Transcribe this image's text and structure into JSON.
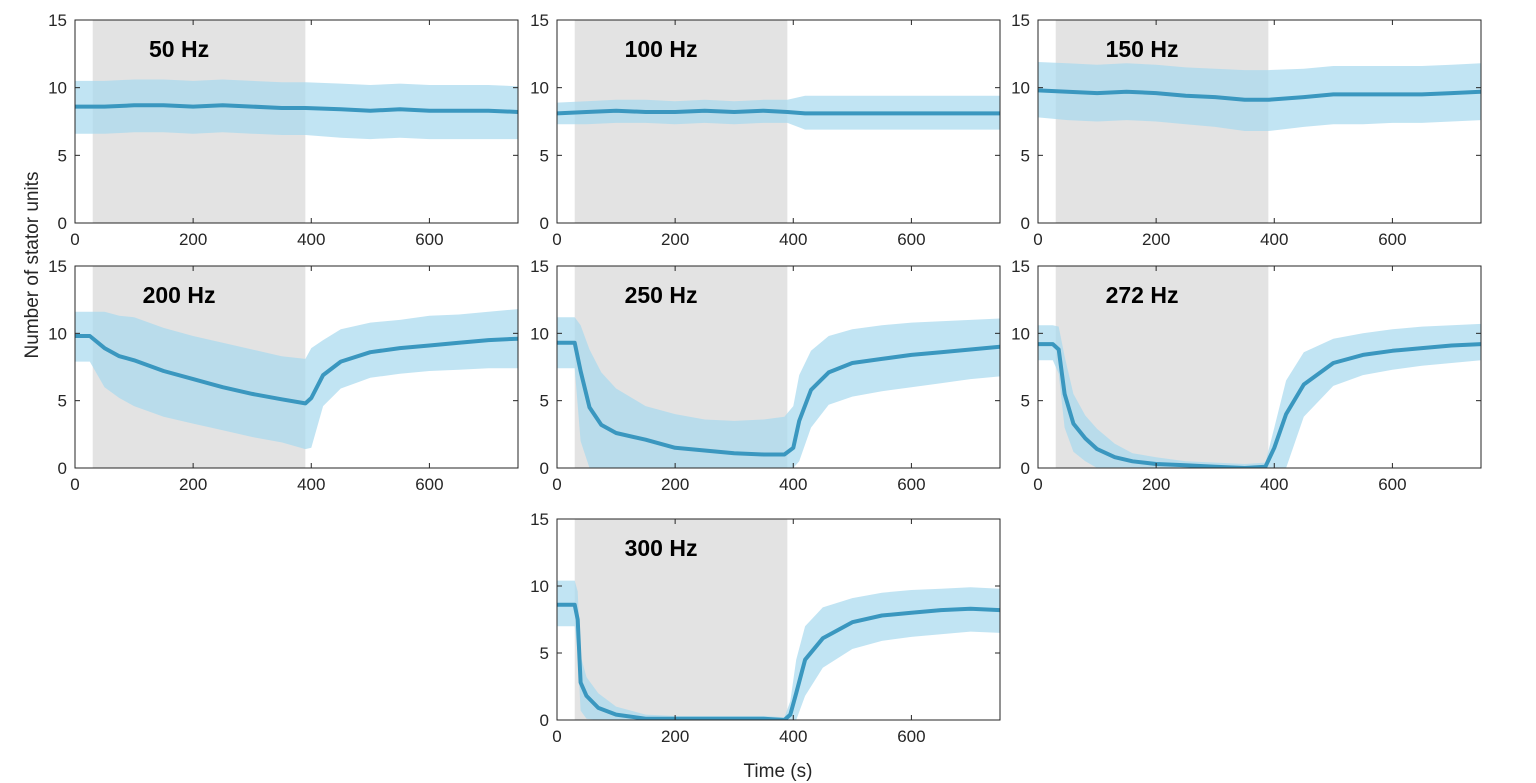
{
  "figure": {
    "ylabel": "Number of stator units",
    "xlabel": "Time (s)"
  },
  "colors": {
    "line": "#3a97bf",
    "band": "#a9daee",
    "stimulus_shade": "#e3e3e3",
    "axis": "#262626"
  },
  "chart_data": [
    {
      "type": "line",
      "title": "50 Hz",
      "xlim": [
        0,
        750
      ],
      "ylim": [
        0,
        15
      ],
      "xticks": [
        0,
        200,
        400,
        600
      ],
      "yticks": [
        0,
        5,
        10,
        15
      ],
      "shaded_interval": [
        30,
        390
      ],
      "series": [
        {
          "x": [
            0,
            50,
            100,
            150,
            200,
            250,
            300,
            350,
            390,
            450,
            500,
            550,
            600,
            650,
            700,
            750
          ],
          "y": [
            8.6,
            8.6,
            8.7,
            8.7,
            8.6,
            8.7,
            8.6,
            8.5,
            8.5,
            8.4,
            8.3,
            8.4,
            8.3,
            8.3,
            8.3,
            8.2
          ],
          "lower": [
            6.6,
            6.6,
            6.7,
            6.7,
            6.6,
            6.7,
            6.6,
            6.5,
            6.5,
            6.3,
            6.2,
            6.3,
            6.2,
            6.2,
            6.2,
            6.2
          ],
          "upper": [
            10.5,
            10.5,
            10.6,
            10.6,
            10.5,
            10.6,
            10.5,
            10.4,
            10.4,
            10.3,
            10.2,
            10.3,
            10.2,
            10.2,
            10.2,
            10.1
          ]
        }
      ]
    },
    {
      "type": "line",
      "title": "100 Hz",
      "xlim": [
        0,
        750
      ],
      "ylim": [
        0,
        15
      ],
      "xticks": [
        0,
        200,
        400,
        600
      ],
      "yticks": [
        0,
        5,
        10,
        15
      ],
      "shaded_interval": [
        30,
        390
      ],
      "series": [
        {
          "x": [
            0,
            50,
            100,
            150,
            200,
            250,
            300,
            350,
            390,
            420,
            500,
            600,
            700,
            750
          ],
          "y": [
            8.1,
            8.2,
            8.3,
            8.2,
            8.2,
            8.3,
            8.2,
            8.3,
            8.2,
            8.1,
            8.1,
            8.1,
            8.1,
            8.1
          ],
          "lower": [
            7.3,
            7.3,
            7.4,
            7.4,
            7.3,
            7.4,
            7.3,
            7.4,
            7.4,
            6.9,
            6.9,
            6.9,
            6.9,
            6.9
          ],
          "upper": [
            8.9,
            9.0,
            9.1,
            9.1,
            9.0,
            9.1,
            9.0,
            9.1,
            9.1,
            9.4,
            9.4,
            9.4,
            9.4,
            9.4
          ]
        }
      ]
    },
    {
      "type": "line",
      "title": "150 Hz",
      "xlim": [
        0,
        750
      ],
      "ylim": [
        0,
        15
      ],
      "xticks": [
        0,
        200,
        400,
        600
      ],
      "yticks": [
        0,
        5,
        10,
        15
      ],
      "shaded_interval": [
        30,
        390
      ],
      "series": [
        {
          "x": [
            0,
            50,
            100,
            150,
            200,
            250,
            300,
            350,
            390,
            450,
            500,
            550,
            600,
            650,
            700,
            750
          ],
          "y": [
            9.8,
            9.7,
            9.6,
            9.7,
            9.6,
            9.4,
            9.3,
            9.1,
            9.1,
            9.3,
            9.5,
            9.5,
            9.5,
            9.5,
            9.6,
            9.7
          ],
          "lower": [
            7.8,
            7.6,
            7.5,
            7.6,
            7.5,
            7.3,
            7.1,
            6.8,
            6.8,
            7.1,
            7.3,
            7.3,
            7.4,
            7.4,
            7.5,
            7.6
          ],
          "upper": [
            11.9,
            11.8,
            11.7,
            11.8,
            11.7,
            11.5,
            11.4,
            11.3,
            11.3,
            11.4,
            11.6,
            11.6,
            11.6,
            11.6,
            11.7,
            11.8
          ]
        }
      ]
    },
    {
      "type": "line",
      "title": "200 Hz",
      "xlim": [
        0,
        750
      ],
      "ylim": [
        0,
        15
      ],
      "xticks": [
        0,
        200,
        400,
        600
      ],
      "yticks": [
        0,
        5,
        10,
        15
      ],
      "shaded_interval": [
        30,
        390
      ],
      "series": [
        {
          "x": [
            0,
            25,
            50,
            75,
            100,
            150,
            200,
            250,
            300,
            350,
            390,
            400,
            420,
            450,
            500,
            550,
            600,
            650,
            700,
            750
          ],
          "y": [
            9.8,
            9.8,
            8.9,
            8.3,
            8.0,
            7.2,
            6.6,
            6.0,
            5.5,
            5.1,
            4.8,
            5.2,
            6.9,
            7.9,
            8.6,
            8.9,
            9.1,
            9.3,
            9.5,
            9.6
          ],
          "lower": [
            7.9,
            7.9,
            6.0,
            5.2,
            4.6,
            3.8,
            3.3,
            2.8,
            2.3,
            1.9,
            1.4,
            1.5,
            4.6,
            5.9,
            6.7,
            7.0,
            7.2,
            7.3,
            7.4,
            7.4
          ],
          "upper": [
            11.6,
            11.6,
            11.6,
            11.3,
            11.2,
            10.4,
            9.8,
            9.3,
            8.8,
            8.3,
            8.1,
            8.9,
            9.5,
            10.3,
            10.8,
            11.0,
            11.3,
            11.4,
            11.6,
            11.8
          ]
        }
      ]
    },
    {
      "type": "line",
      "title": "250 Hz",
      "xlim": [
        0,
        750
      ],
      "ylim": [
        0,
        15
      ],
      "xticks": [
        0,
        200,
        400,
        600
      ],
      "yticks": [
        0,
        5,
        10,
        15
      ],
      "shaded_interval": [
        30,
        390
      ],
      "series": [
        {
          "x": [
            0,
            30,
            40,
            55,
            75,
            100,
            150,
            200,
            250,
            300,
            350,
            385,
            400,
            410,
            430,
            460,
            500,
            550,
            600,
            650,
            700,
            750
          ],
          "y": [
            9.3,
            9.3,
            7.2,
            4.5,
            3.2,
            2.6,
            2.1,
            1.5,
            1.3,
            1.1,
            1.0,
            1.0,
            1.5,
            3.5,
            5.8,
            7.1,
            7.8,
            8.1,
            8.4,
            8.6,
            8.8,
            9.0
          ],
          "lower": [
            7.4,
            7.4,
            2.0,
            0.0,
            0.0,
            0.0,
            0.0,
            0.0,
            0.0,
            0.0,
            0.0,
            0.0,
            0.0,
            0.5,
            3.0,
            4.7,
            5.3,
            5.7,
            6.0,
            6.3,
            6.6,
            6.8
          ],
          "upper": [
            11.2,
            11.2,
            10.6,
            8.8,
            7.1,
            5.9,
            4.6,
            4.0,
            3.6,
            3.5,
            3.6,
            3.8,
            4.6,
            6.9,
            8.7,
            9.8,
            10.3,
            10.6,
            10.8,
            10.9,
            11.0,
            11.1
          ]
        }
      ]
    },
    {
      "type": "line",
      "title": "272 Hz",
      "xlim": [
        0,
        750
      ],
      "ylim": [
        0,
        15
      ],
      "xticks": [
        0,
        200,
        400,
        600
      ],
      "yticks": [
        0,
        5,
        10,
        15
      ],
      "shaded_interval": [
        30,
        390
      ],
      "series": [
        {
          "x": [
            0,
            25,
            35,
            45,
            60,
            80,
            100,
            130,
            160,
            200,
            250,
            300,
            350,
            385,
            400,
            420,
            450,
            500,
            550,
            600,
            650,
            700,
            750
          ],
          "y": [
            9.2,
            9.2,
            8.8,
            5.5,
            3.3,
            2.2,
            1.4,
            0.8,
            0.5,
            0.3,
            0.2,
            0.1,
            0.0,
            0.1,
            1.5,
            4.0,
            6.2,
            7.8,
            8.4,
            8.7,
            8.9,
            9.1,
            9.2
          ],
          "lower": [
            8.0,
            8.0,
            7.0,
            3.0,
            1.2,
            0.5,
            0.0,
            0.0,
            0.0,
            0.0,
            0.0,
            0.0,
            0.0,
            0.0,
            0.0,
            0.0,
            3.8,
            6.1,
            6.9,
            7.3,
            7.6,
            7.8,
            8.0
          ],
          "upper": [
            10.6,
            10.6,
            10.5,
            8.3,
            5.5,
            3.9,
            2.9,
            1.8,
            1.1,
            0.8,
            0.5,
            0.4,
            0.3,
            0.4,
            3.0,
            6.5,
            8.6,
            9.6,
            10.0,
            10.3,
            10.5,
            10.6,
            10.7
          ]
        }
      ]
    },
    {
      "type": "line",
      "title": "300 Hz",
      "xlim": [
        0,
        750
      ],
      "ylim": [
        0,
        15
      ],
      "xticks": [
        0,
        200,
        400,
        600
      ],
      "yticks": [
        0,
        5,
        10,
        15
      ],
      "shaded_interval": [
        30,
        390
      ],
      "series": [
        {
          "x": [
            0,
            30,
            35,
            40,
            50,
            70,
            100,
            150,
            200,
            250,
            300,
            350,
            385,
            395,
            405,
            420,
            450,
            500,
            550,
            600,
            650,
            700,
            750
          ],
          "y": [
            8.6,
            8.6,
            7.5,
            2.8,
            1.8,
            0.9,
            0.4,
            0.1,
            0.1,
            0.1,
            0.1,
            0.1,
            0.0,
            0.4,
            2.0,
            4.5,
            6.1,
            7.3,
            7.8,
            8.0,
            8.2,
            8.3,
            8.2
          ],
          "lower": [
            7.0,
            7.0,
            5.0,
            0.7,
            0.1,
            0.0,
            0.0,
            0.0,
            0.0,
            0.0,
            0.0,
            0.0,
            0.0,
            0.0,
            0.0,
            1.8,
            3.9,
            5.3,
            5.9,
            6.2,
            6.4,
            6.6,
            6.5
          ],
          "upper": [
            10.4,
            10.4,
            9.6,
            4.8,
            3.2,
            2.0,
            1.0,
            0.4,
            0.3,
            0.3,
            0.3,
            0.3,
            0.2,
            1.4,
            4.5,
            7.0,
            8.4,
            9.1,
            9.5,
            9.7,
            9.8,
            9.9,
            9.8
          ]
        }
      ]
    }
  ]
}
